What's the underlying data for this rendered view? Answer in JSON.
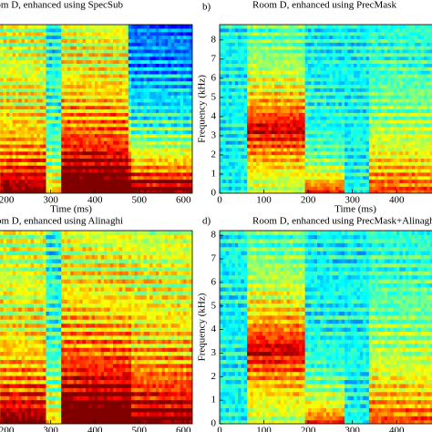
{
  "chart_data": [
    {
      "type": "spectrogram",
      "title": "Room D, enhanced using SpecSub",
      "xlabel": "Time (ms)",
      "xlim": [
        0,
        620
      ],
      "ylim": [
        0,
        8.8
      ],
      "xticks": [
        200,
        300,
        400,
        500,
        600
      ]
    },
    {
      "type": "spectrogram",
      "panel_label": "b)",
      "title": "Room D, enhanced using PrecMask",
      "xlabel": "Time (ms)",
      "ylabel": "Frequency (kHz)",
      "xlim": [
        0,
        620
      ],
      "ylim": [
        0,
        8.8
      ],
      "xticks": [
        0,
        100,
        200,
        300,
        400
      ],
      "yticks": [
        0,
        1,
        2,
        3,
        4,
        5,
        6,
        7,
        8
      ]
    },
    {
      "type": "spectrogram",
      "title": "Room D, enhanced using Alinaghi",
      "xlabel": "Time (ms)",
      "xlim": [
        0,
        620
      ],
      "ylim": [
        0,
        8.2
      ],
      "xticks": [
        200,
        300,
        400,
        500,
        600
      ]
    },
    {
      "type": "spectrogram",
      "panel_label": "d)",
      "title": "Room D, enhanced using PrecMask+Alinaghi",
      "xlabel": "Time (ms)",
      "ylabel": "Frequency (kHz)",
      "xlim": [
        0,
        620
      ],
      "ylim": [
        0,
        8.2
      ],
      "xticks": [
        0,
        100,
        200,
        300,
        400
      ],
      "yticks": [
        0,
        1,
        2,
        3,
        4,
        5,
        6,
        7,
        8
      ]
    }
  ]
}
